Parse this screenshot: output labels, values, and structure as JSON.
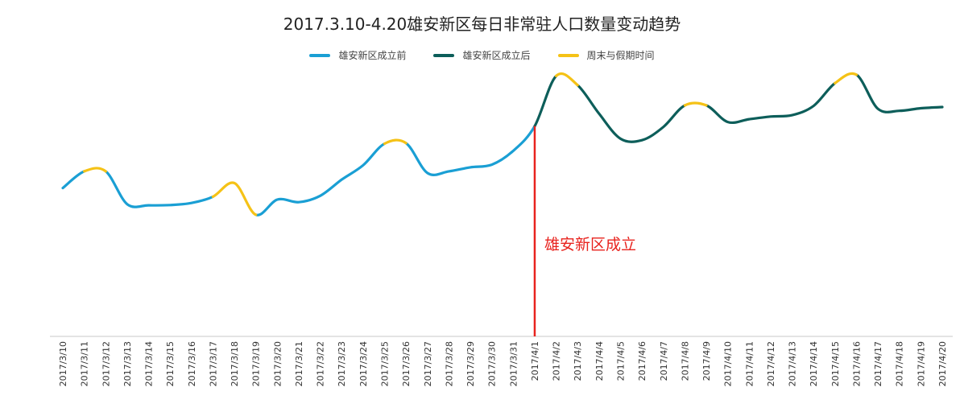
{
  "chart_data": {
    "type": "line",
    "title": "2017.3.10-4.20雄安新区每日非常驻人口数量变动趋势",
    "xlabel": "",
    "ylabel": "",
    "ylim": [
      0,
      100
    ],
    "grid": false,
    "legend_position": "top-center",
    "categories": [
      "2017/3/10",
      "2017/3/11",
      "2017/3/12",
      "2017/3/13",
      "2017/3/14",
      "2017/3/15",
      "2017/3/16",
      "2017/3/17",
      "2017/3/18",
      "2017/3/19",
      "2017/3/20",
      "2017/3/21",
      "2017/3/22",
      "2017/3/23",
      "2017/3/24",
      "2017/3/25",
      "2017/3/26",
      "2017/3/27",
      "2017/3/28",
      "2017/3/29",
      "2017/3/30",
      "2017/3/31",
      "2017/4/1",
      "2017/4/2",
      "2017/4/3",
      "2017/4/4",
      "2017/4/5",
      "2017/4/6",
      "2017/4/7",
      "2017/4/8",
      "2017/4/9",
      "2017/4/10",
      "2017/4/11",
      "2017/4/12",
      "2017/4/13",
      "2017/4/14",
      "2017/4/15",
      "2017/4/16",
      "2017/4/17",
      "2017/4/18",
      "2017/4/19",
      "2017/4/20"
    ],
    "values": [
      51.5,
      57.3,
      57.3,
      45.9,
      45.5,
      45.6,
      46.3,
      48.5,
      53.2,
      42.2,
      47.5,
      46.6,
      48.8,
      54.4,
      59.4,
      66.9,
      67.1,
      56.7,
      57.3,
      58.7,
      59.6,
      64.4,
      73.0,
      90.4,
      87.2,
      77.3,
      68.6,
      68.1,
      72.7,
      80.2,
      80.2,
      74.4,
      75.4,
      76.3,
      76.8,
      80.0,
      87.9,
      90.8,
      79.0,
      78.3,
      79.2,
      79.6
    ],
    "series": [
      {
        "name": "雄安新区成立前",
        "color": "#1a9fd4",
        "ranges": [
          [
            0,
            1
          ],
          [
            2,
            7
          ],
          [
            9,
            15
          ],
          [
            16,
            22
          ]
        ]
      },
      {
        "name": "雄安新区成立后",
        "color": "#0d5e5a",
        "ranges": [
          [
            22,
            23
          ],
          [
            24,
            29
          ],
          [
            30,
            36
          ],
          [
            37,
            41
          ]
        ]
      },
      {
        "name": "周末与假期时间",
        "color": "#f5c216",
        "ranges": [
          [
            1,
            2
          ],
          [
            7,
            9
          ],
          [
            15,
            16
          ],
          [
            23,
            24
          ],
          [
            29,
            30
          ],
          [
            36,
            37
          ]
        ]
      }
    ],
    "annotations": [
      {
        "text": "雄安新区成立",
        "x_index": 22,
        "color": "#e8231e"
      }
    ]
  }
}
